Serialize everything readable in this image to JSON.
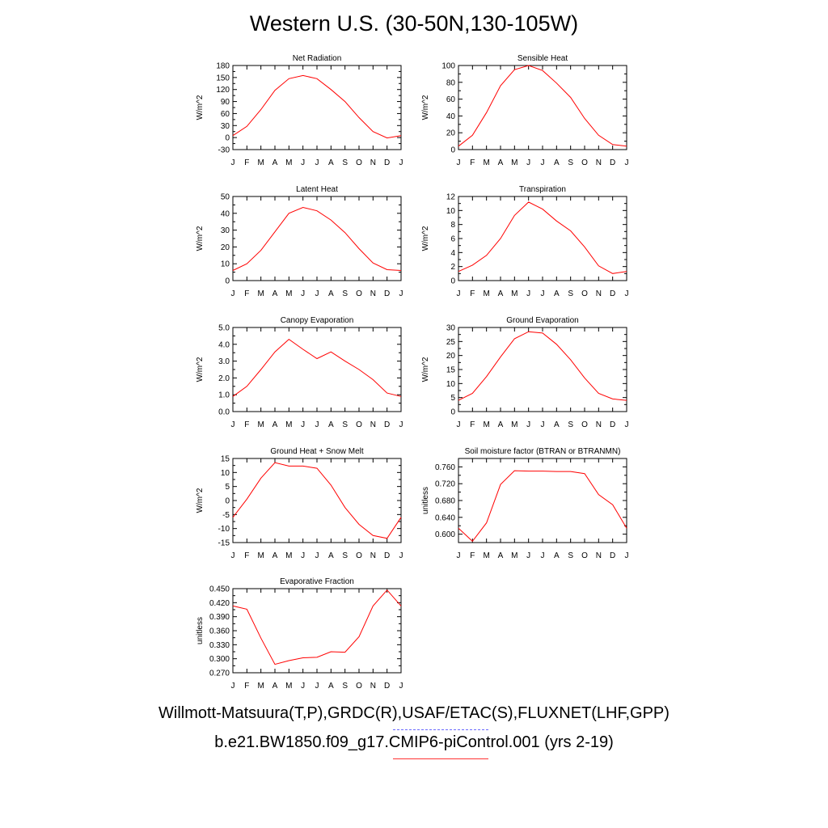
{
  "title": "Western U.S. (30-50N,130-105W)",
  "legend": {
    "obs_label": "Willmott-Matsuura(T,P),GRDC(R),USAF/ETAC(S),FLUXNET(LHF,GPP)",
    "model_label": "b.e21.BW1850.f09_g17.CMIP6-piControl.001 (yrs 2-19)",
    "obs_color": "#6a6aff",
    "model_color": "#ff0000"
  },
  "chart_data": [
    {
      "type": "line",
      "title": "Net Radiation",
      "ylabel": "W/m^2",
      "x": [
        "J",
        "F",
        "M",
        "A",
        "M",
        "J",
        "J",
        "A",
        "S",
        "O",
        "N",
        "D",
        "J"
      ],
      "ylim": [
        -30,
        180
      ],
      "yticks": [
        "-30",
        "0",
        "30",
        "60",
        "90",
        "120",
        "150",
        "180"
      ],
      "series": [
        {
          "values": [
            5,
            28,
            70,
            118,
            147,
            155,
            147,
            120,
            90,
            50,
            15,
            -1,
            5
          ]
        }
      ]
    },
    {
      "type": "line",
      "title": "Sensible Heat",
      "ylabel": "W/m^2",
      "x": [
        "J",
        "F",
        "M",
        "A",
        "M",
        "J",
        "J",
        "A",
        "S",
        "O",
        "N",
        "D",
        "J"
      ],
      "ylim": [
        0,
        100
      ],
      "yticks": [
        "0",
        "20",
        "40",
        "60",
        "80",
        "100"
      ],
      "series": [
        {
          "values": [
            4,
            17,
            44,
            76,
            95,
            100,
            94,
            79,
            62,
            37,
            17,
            6,
            4
          ]
        }
      ]
    },
    {
      "type": "line",
      "title": "Latent Heat",
      "ylabel": "W/m^2",
      "x": [
        "J",
        "F",
        "M",
        "A",
        "M",
        "J",
        "J",
        "A",
        "S",
        "O",
        "N",
        "D",
        "J"
      ],
      "ylim": [
        0,
        50
      ],
      "yticks": [
        "0",
        "10",
        "20",
        "30",
        "40",
        "50"
      ],
      "series": [
        {
          "values": [
            6,
            10,
            18,
            29,
            40,
            43.5,
            41.5,
            36,
            28.5,
            19,
            10.5,
            6.5,
            6
          ]
        }
      ]
    },
    {
      "type": "line",
      "title": "Transpiration",
      "ylabel": "W/m^2",
      "x": [
        "J",
        "F",
        "M",
        "A",
        "M",
        "J",
        "J",
        "A",
        "S",
        "O",
        "N",
        "D",
        "J"
      ],
      "ylim": [
        0,
        12
      ],
      "yticks": [
        "0",
        "2",
        "4",
        "6",
        "8",
        "10",
        "12"
      ],
      "series": [
        {
          "values": [
            1.3,
            2.2,
            3.6,
            6.0,
            9.3,
            11.2,
            10.2,
            8.5,
            7.1,
            4.8,
            2.1,
            1.0,
            1.3
          ]
        }
      ]
    },
    {
      "type": "line",
      "title": "Canopy Evaporation",
      "ylabel": "W/m^2",
      "x": [
        "J",
        "F",
        "M",
        "A",
        "M",
        "J",
        "J",
        "A",
        "S",
        "O",
        "N",
        "D",
        "J"
      ],
      "ylim": [
        0,
        5
      ],
      "yticks": [
        "0.0",
        "1.0",
        "2.0",
        "3.0",
        "4.0",
        "5.0"
      ],
      "series": [
        {
          "values": [
            0.9,
            1.5,
            2.5,
            3.55,
            4.3,
            3.7,
            3.15,
            3.55,
            3.0,
            2.5,
            1.9,
            1.1,
            0.9
          ]
        }
      ]
    },
    {
      "type": "line",
      "title": "Ground Evaporation",
      "ylabel": "W/m^2",
      "x": [
        "J",
        "F",
        "M",
        "A",
        "M",
        "J",
        "J",
        "A",
        "S",
        "O",
        "N",
        "D",
        "J"
      ],
      "ylim": [
        0,
        30
      ],
      "yticks": [
        "0",
        "5",
        "10",
        "15",
        "20",
        "25",
        "30"
      ],
      "series": [
        {
          "values": [
            4,
            6.5,
            12.5,
            19.5,
            26,
            28.5,
            28,
            24,
            18.5,
            12,
            6.5,
            4.5,
            4
          ]
        }
      ]
    },
    {
      "type": "line",
      "title": "Ground Heat + Snow Melt",
      "ylabel": "W/m^2",
      "x": [
        "J",
        "F",
        "M",
        "A",
        "M",
        "J",
        "J",
        "A",
        "S",
        "O",
        "N",
        "D",
        "J"
      ],
      "ylim": [
        -15,
        15
      ],
      "yticks": [
        "-15",
        "-10",
        "-5",
        "0",
        "5",
        "10",
        "15"
      ],
      "series": [
        {
          "values": [
            -6,
            0.5,
            8,
            13.5,
            12.3,
            12.3,
            11.5,
            5.5,
            -2.5,
            -8.5,
            -12.5,
            -13.5,
            -6
          ]
        }
      ]
    },
    {
      "type": "line",
      "title": "Soil moisture factor (BTRAN or BTRANMN)",
      "ylabel": "unitless",
      "x": [
        "J",
        "F",
        "M",
        "A",
        "M",
        "J",
        "J",
        "A",
        "S",
        "O",
        "N",
        "D",
        "J"
      ],
      "ylim": [
        0.58,
        0.78
      ],
      "yticks": [
        "0.600",
        "0.640",
        "0.680",
        "0.720",
        "0.760"
      ],
      "series": [
        {
          "values": [
            0.614,
            0.583,
            0.627,
            0.718,
            0.751,
            0.75,
            0.75,
            0.749,
            0.749,
            0.744,
            0.694,
            0.67,
            0.614
          ]
        }
      ]
    },
    {
      "type": "line",
      "title": "Evaporative Fraction",
      "ylabel": "unitless",
      "x": [
        "J",
        "F",
        "M",
        "A",
        "M",
        "J",
        "J",
        "A",
        "S",
        "O",
        "N",
        "D",
        "J"
      ],
      "ylim": [
        0.27,
        0.45
      ],
      "yticks": [
        "0.270",
        "0.300",
        "0.330",
        "0.360",
        "0.390",
        "0.420",
        "0.450"
      ],
      "series": [
        {
          "values": [
            0.413,
            0.406,
            0.344,
            0.288,
            0.296,
            0.302,
            0.303,
            0.315,
            0.314,
            0.347,
            0.413,
            0.447,
            0.413
          ]
        }
      ]
    }
  ]
}
